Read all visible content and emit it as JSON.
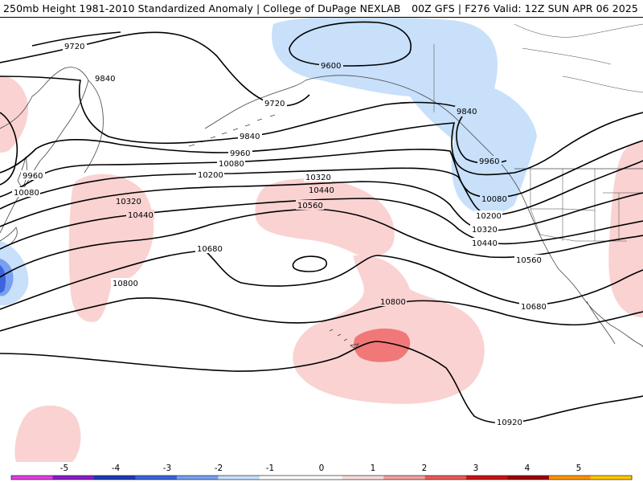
{
  "header": {
    "title_left": "250mb Height 1981-2010 Standardized Anomaly | College of DuPage NEXLAB",
    "title_right": "00Z GFS | F276 Valid: 12Z SUN APR 06 2025"
  },
  "contour_labels": [
    "9720",
    "9840",
    "9720",
    "9600",
    "9840",
    "9960",
    "10080",
    "10200",
    "9960",
    "10080",
    "10320",
    "10440",
    "10320",
    "10440",
    "10560",
    "9840",
    "9960",
    "10080",
    "10200",
    "10320",
    "10440",
    "10680",
    "10560",
    "10800",
    "10800",
    "10680",
    "10920"
  ],
  "colorbar": {
    "tick_labels": [
      "-5",
      "-4",
      "-3",
      "-2",
      "-1",
      "0",
      "1",
      "2",
      "3",
      "4",
      "5"
    ],
    "colors": [
      "#e040e0",
      "#8a1ec8",
      "#1e3cb4",
      "#3c64dc",
      "#78a0f0",
      "#c8e0fa",
      "#ffffff",
      "#ffffff",
      "#fadcdc",
      "#f5a0a0",
      "#eb5a5a",
      "#c81414",
      "#a00000",
      "#ff9600",
      "#ffc800"
    ]
  },
  "colors": {
    "neg1": "#c8e0fa",
    "neg2": "#78a0f0",
    "neg3": "#3c64dc",
    "pos1": "#fad2d2",
    "pos2": "#f07878",
    "contour": "#000000",
    "coast": "#444444"
  }
}
